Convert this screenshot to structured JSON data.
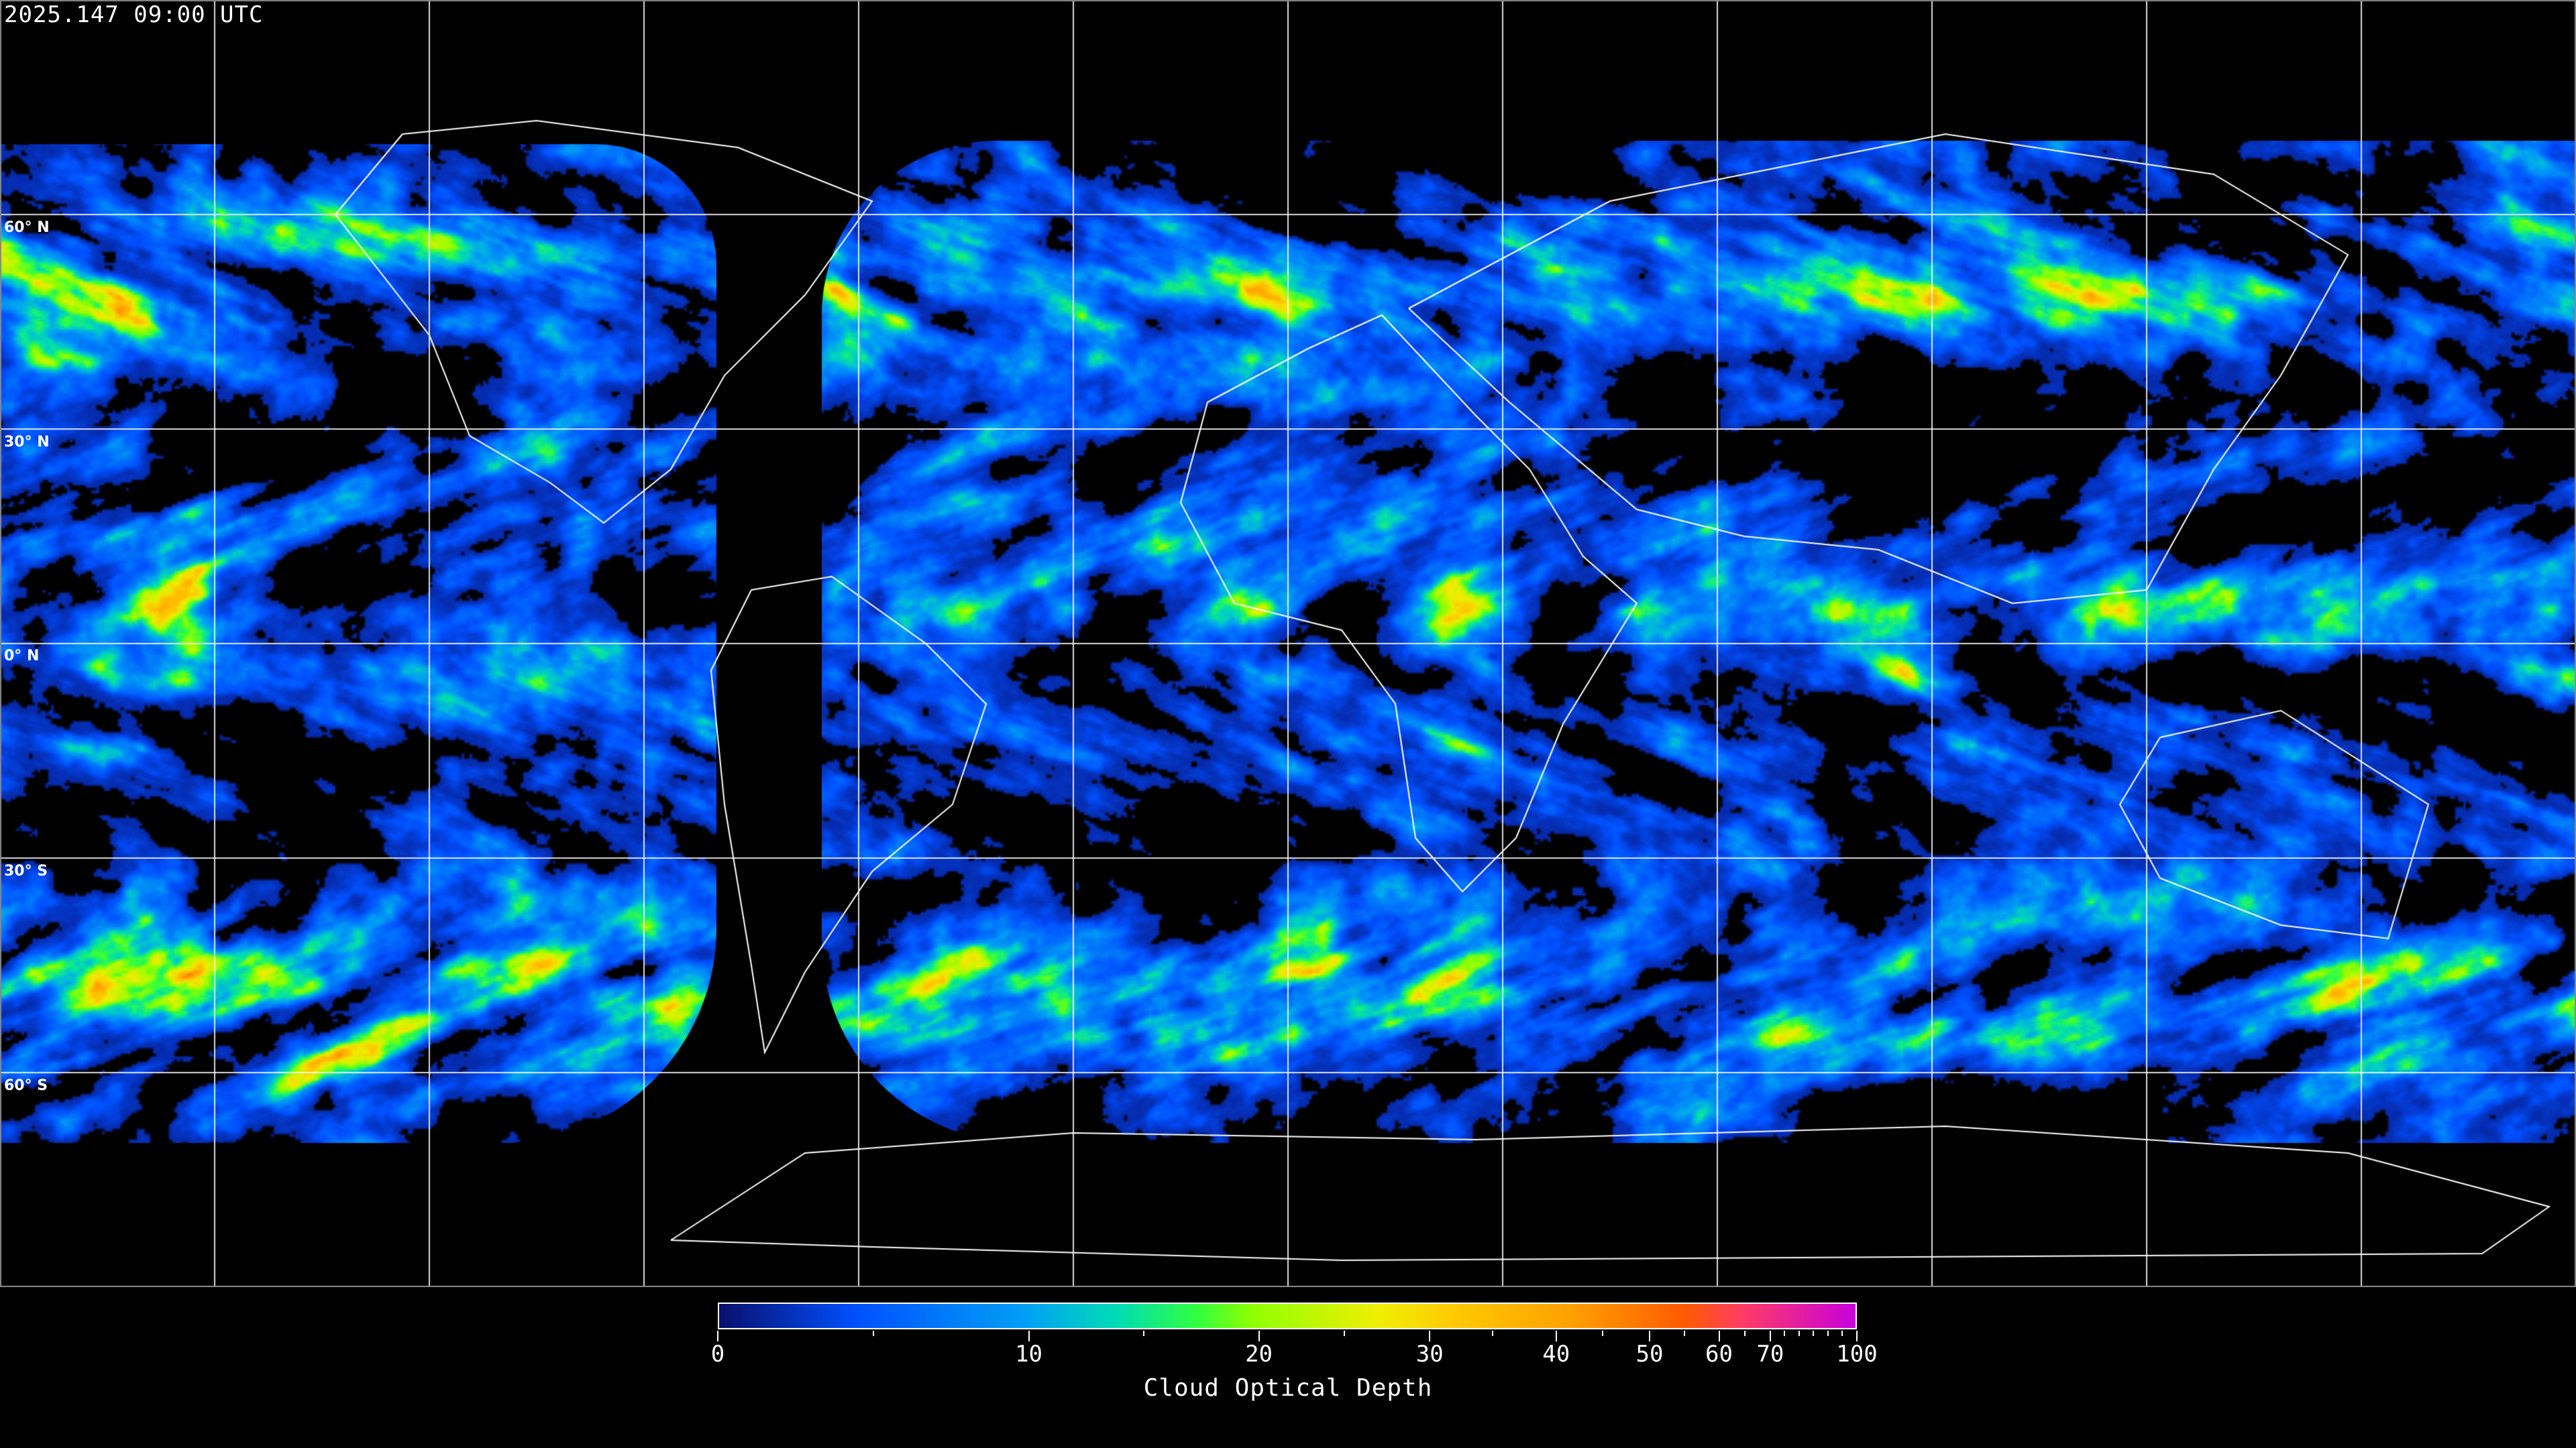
{
  "title": "2025.147 09:00 UTC",
  "latitude_labels": [
    "60° N",
    "30° N",
    "0° N",
    "30° S",
    "60° S"
  ],
  "map": {
    "projection": "equirectangular",
    "graticule_spacing_degrees": 30,
    "graticule_color": "#ffffff",
    "coastline_color": "#ffffff",
    "background_color": "#000000"
  },
  "colorbar": {
    "label": "Cloud Optical Depth",
    "range": [
      0,
      100
    ],
    "major_ticks": [
      0,
      10,
      20,
      30,
      40,
      50,
      60,
      70,
      100
    ],
    "major_tick_labels": [
      "0",
      "10",
      "20",
      "30",
      "40",
      "50",
      "60",
      "70",
      "100"
    ],
    "minor_ticks": [
      5,
      15,
      25,
      35,
      45,
      55,
      65,
      75,
      80,
      85,
      90,
      95
    ],
    "colors": [
      "#0a0f6e",
      "#0050ff",
      "#00a0f5",
      "#00dcb4",
      "#30ff40",
      "#90ff00",
      "#f0ee00",
      "#ffc800",
      "#ffa000",
      "#ff5a00",
      "#ff3c64",
      "#c800dc"
    ]
  }
}
